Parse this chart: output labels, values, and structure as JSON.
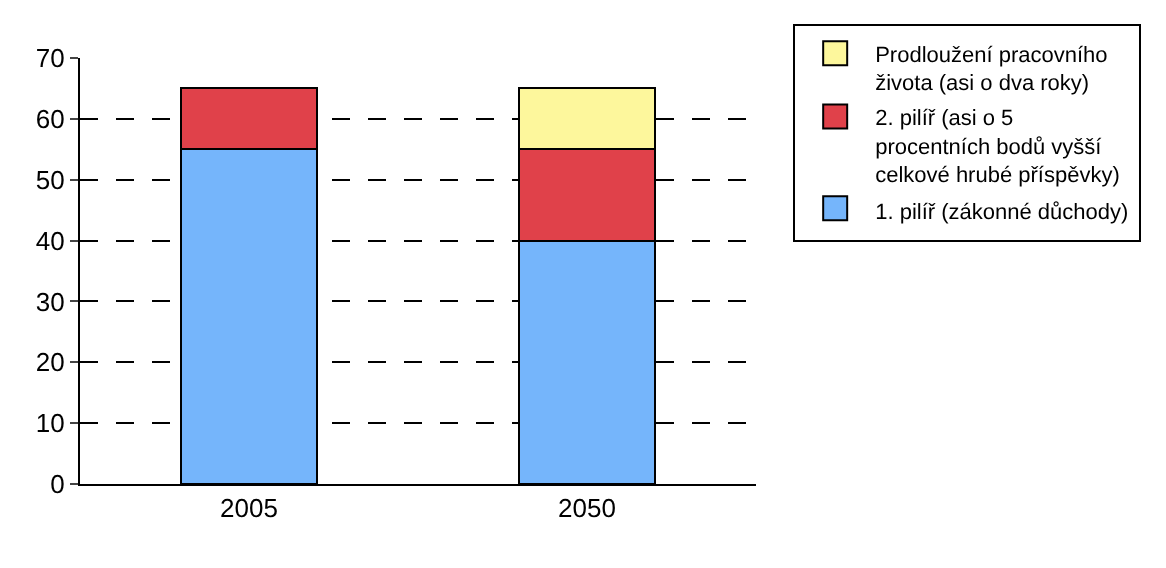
{
  "chart_data": {
    "type": "bar",
    "stacked": true,
    "categories": [
      "2005",
      "2050"
    ],
    "series": [
      {
        "name": "1. pilíř (zákonné důchody)",
        "color": "#75b5fb",
        "values": [
          55,
          40
        ]
      },
      {
        "name": "2. pilíř (asi o 5 procentních bodů vyšší celkové hrubé příspěvky)",
        "color": "#e0414a",
        "values": [
          10,
          15
        ]
      },
      {
        "name": "Prodloužení pracovního života (asi o dva roky)",
        "color": "#fdf79c",
        "values": [
          null,
          10
        ]
      }
    ],
    "ylim": [
      0,
      70
    ],
    "yticks": [
      0,
      10,
      20,
      30,
      40,
      50,
      60,
      70
    ],
    "grid": "y",
    "legend": "right"
  }
}
